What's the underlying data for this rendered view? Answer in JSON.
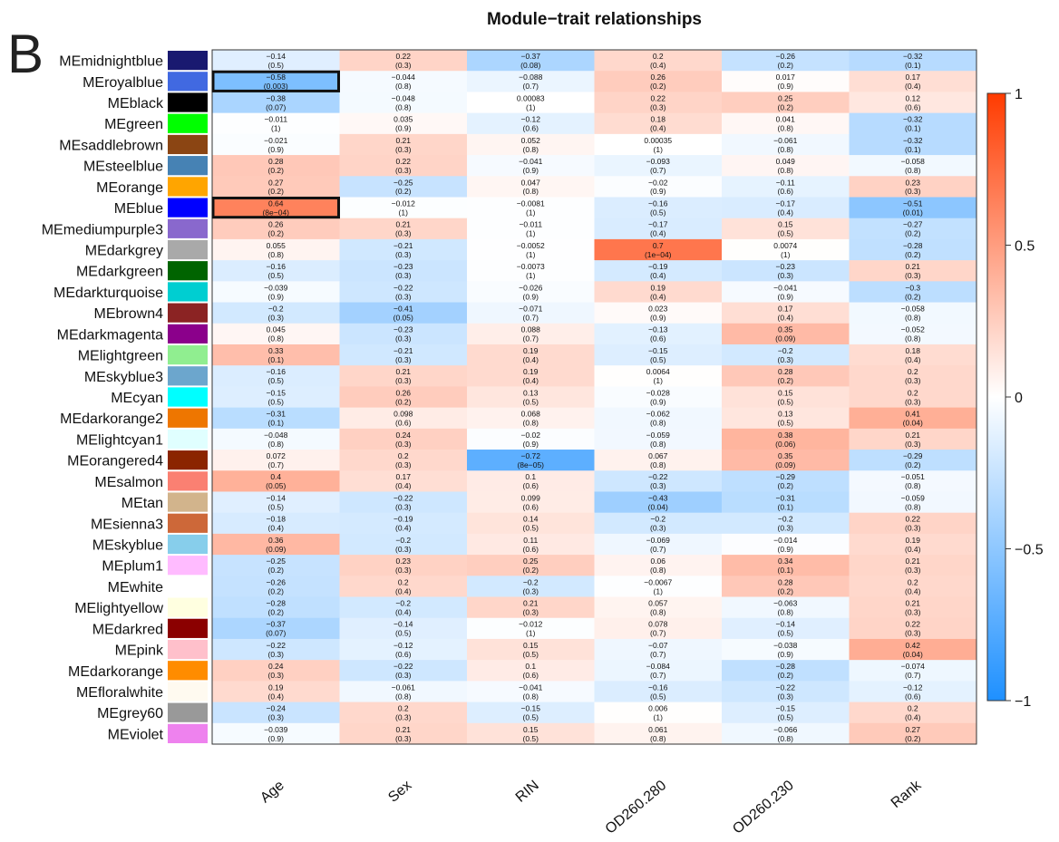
{
  "panel_label": "B",
  "chart_data": {
    "type": "heatmap",
    "title": "Module−trait relationships",
    "columns": [
      "Age",
      "Sex",
      "RIN",
      "OD260.280",
      "OD260.230",
      "Rank"
    ],
    "rows": [
      {
        "name": "MEmidnightblue",
        "color": "#191970",
        "values": [
          "−0.14",
          "0.22",
          "−0.37",
          "0.2",
          "−0.26",
          "−0.32"
        ],
        "pvalues": [
          "(0.5)",
          "(0.3)",
          "(0.08)",
          "(0.4)",
          "(0.2)",
          "(0.1)"
        ]
      },
      {
        "name": "MEroyalblue",
        "color": "#4169e1",
        "values": [
          "−0.58",
          "−0.044",
          "−0.088",
          "0.26",
          "0.017",
          "0.17"
        ],
        "pvalues": [
          "(0.003)",
          "(0.8)",
          "(0.7)",
          "(0.2)",
          "(0.9)",
          "(0.4)"
        ]
      },
      {
        "name": "MEblack",
        "color": "#000000",
        "values": [
          "−0.38",
          "−0.048",
          "0.00083",
          "0.22",
          "0.25",
          "0.12"
        ],
        "pvalues": [
          "(0.07)",
          "(0.8)",
          "(1)",
          "(0.3)",
          "(0.2)",
          "(0.6)"
        ]
      },
      {
        "name": "MEgreen",
        "color": "#00ff00",
        "values": [
          "−0.011",
          "0.035",
          "−0.12",
          "0.18",
          "0.041",
          "−0.32"
        ],
        "pvalues": [
          "(1)",
          "(0.9)",
          "(0.6)",
          "(0.4)",
          "(0.8)",
          "(0.1)"
        ]
      },
      {
        "name": "MEsaddlebrown",
        "color": "#8b4513",
        "values": [
          "−0.021",
          "0.21",
          "0.052",
          "0.00035",
          "−0.061",
          "−0.32"
        ],
        "pvalues": [
          "(0.9)",
          "(0.3)",
          "(0.8)",
          "(1)",
          "(0.8)",
          "(0.1)"
        ]
      },
      {
        "name": "MEsteelblue",
        "color": "#4682b4",
        "values": [
          "0.28",
          "0.22",
          "−0.041",
          "−0.093",
          "0.049",
          "−0.058"
        ],
        "pvalues": [
          "(0.2)",
          "(0.3)",
          "(0.9)",
          "(0.7)",
          "(0.8)",
          "(0.8)"
        ]
      },
      {
        "name": "MEorange",
        "color": "#ffa500",
        "values": [
          "0.27",
          "−0.25",
          "0.047",
          "−0.02",
          "−0.11",
          "0.23"
        ],
        "pvalues": [
          "(0.2)",
          "(0.2)",
          "(0.8)",
          "(0.9)",
          "(0.6)",
          "(0.3)"
        ]
      },
      {
        "name": "MEblue",
        "color": "#0000ff",
        "values": [
          "0.64",
          "−0.012",
          "−0.0081",
          "−0.16",
          "−0.17",
          "−0.51"
        ],
        "pvalues": [
          "(8e−04)",
          "(1)",
          "(1)",
          "(0.5)",
          "(0.4)",
          "(0.01)"
        ]
      },
      {
        "name": "MEmediumpurple3",
        "color": "#8968cd",
        "values": [
          "0.26",
          "0.21",
          "−0.011",
          "−0.17",
          "0.15",
          "−0.27"
        ],
        "pvalues": [
          "(0.2)",
          "(0.3)",
          "(1)",
          "(0.4)",
          "(0.5)",
          "(0.2)"
        ]
      },
      {
        "name": "MEdarkgrey",
        "color": "#a9a9a9",
        "values": [
          "0.055",
          "−0.21",
          "−0.0052",
          "0.7",
          "0.0074",
          "−0.28"
        ],
        "pvalues": [
          "(0.8)",
          "(0.3)",
          "(1)",
          "(1e−04)",
          "(1)",
          "(0.2)"
        ]
      },
      {
        "name": "MEdarkgreen",
        "color": "#006400",
        "values": [
          "−0.16",
          "−0.23",
          "−0.0073",
          "−0.19",
          "−0.23",
          "0.21"
        ],
        "pvalues": [
          "(0.5)",
          "(0.3)",
          "(1)",
          "(0.4)",
          "(0.3)",
          "(0.3)"
        ]
      },
      {
        "name": "MEdarkturquoise",
        "color": "#00ced1",
        "values": [
          "−0.039",
          "−0.22",
          "−0.026",
          "0.19",
          "−0.041",
          "−0.3"
        ],
        "pvalues": [
          "(0.9)",
          "(0.3)",
          "(0.9)",
          "(0.4)",
          "(0.9)",
          "(0.2)"
        ]
      },
      {
        "name": "MEbrown4",
        "color": "#8b2323",
        "values": [
          "−0.2",
          "−0.41",
          "−0.071",
          "0.023",
          "0.17",
          "−0.058"
        ],
        "pvalues": [
          "(0.3)",
          "(0.05)",
          "(0.7)",
          "(0.9)",
          "(0.4)",
          "(0.8)"
        ]
      },
      {
        "name": "MEdarkmagenta",
        "color": "#8b008b",
        "values": [
          "0.045",
          "−0.23",
          "0.088",
          "−0.13",
          "0.35",
          "−0.052"
        ],
        "pvalues": [
          "(0.8)",
          "(0.3)",
          "(0.7)",
          "(0.6)",
          "(0.09)",
          "(0.8)"
        ]
      },
      {
        "name": "MElightgreen",
        "color": "#90ee90",
        "values": [
          "0.33",
          "−0.21",
          "0.19",
          "−0.15",
          "−0.2",
          "0.18"
        ],
        "pvalues": [
          "(0.1)",
          "(0.3)",
          "(0.4)",
          "(0.5)",
          "(0.3)",
          "(0.4)"
        ]
      },
      {
        "name": "MEskyblue3",
        "color": "#6ca6cd",
        "values": [
          "−0.16",
          "0.21",
          "0.19",
          "0.0064",
          "0.28",
          "0.2"
        ],
        "pvalues": [
          "(0.5)",
          "(0.3)",
          "(0.4)",
          "(1)",
          "(0.2)",
          "(0.3)"
        ]
      },
      {
        "name": "MEcyan",
        "color": "#00ffff",
        "values": [
          "−0.15",
          "0.26",
          "0.13",
          "−0.028",
          "0.15",
          "0.2"
        ],
        "pvalues": [
          "(0.5)",
          "(0.2)",
          "(0.5)",
          "(0.9)",
          "(0.5)",
          "(0.3)"
        ]
      },
      {
        "name": "MEdarkorange2",
        "color": "#ee7600",
        "values": [
          "−0.31",
          "0.098",
          "0.068",
          "−0.062",
          "0.13",
          "0.41"
        ],
        "pvalues": [
          "(0.1)",
          "(0.6)",
          "(0.8)",
          "(0.8)",
          "(0.5)",
          "(0.04)"
        ]
      },
      {
        "name": "MElightcyan1",
        "color": "#e0ffff",
        "values": [
          "−0.048",
          "0.24",
          "−0.02",
          "−0.059",
          "0.38",
          "0.21"
        ],
        "pvalues": [
          "(0.8)",
          "(0.3)",
          "(0.9)",
          "(0.8)",
          "(0.06)",
          "(0.3)"
        ]
      },
      {
        "name": "MEorangered4",
        "color": "#8b2500",
        "values": [
          "0.072",
          "0.2",
          "−0.72",
          "0.067",
          "0.35",
          "−0.29"
        ],
        "pvalues": [
          "(0.7)",
          "(0.3)",
          "(8e−05)",
          "(0.8)",
          "(0.09)",
          "(0.2)"
        ]
      },
      {
        "name": "MEsalmon",
        "color": "#fa8072",
        "values": [
          "0.4",
          "0.17",
          "0.1",
          "−0.22",
          "−0.29",
          "−0.051"
        ],
        "pvalues": [
          "(0.05)",
          "(0.4)",
          "(0.6)",
          "(0.3)",
          "(0.2)",
          "(0.8)"
        ]
      },
      {
        "name": "MEtan",
        "color": "#d2b48c",
        "values": [
          "−0.14",
          "−0.22",
          "0.099",
          "−0.43",
          "−0.31",
          "−0.059"
        ],
        "pvalues": [
          "(0.5)",
          "(0.3)",
          "(0.6)",
          "(0.04)",
          "(0.1)",
          "(0.8)"
        ]
      },
      {
        "name": "MEsienna3",
        "color": "#cd6839",
        "values": [
          "−0.18",
          "−0.19",
          "0.14",
          "−0.2",
          "−0.2",
          "0.22"
        ],
        "pvalues": [
          "(0.4)",
          "(0.4)",
          "(0.5)",
          "(0.3)",
          "(0.3)",
          "(0.3)"
        ]
      },
      {
        "name": "MEskyblue",
        "color": "#87ceeb",
        "values": [
          "0.36",
          "−0.2",
          "0.11",
          "−0.069",
          "−0.014",
          "0.19"
        ],
        "pvalues": [
          "(0.09)",
          "(0.3)",
          "(0.6)",
          "(0.7)",
          "(0.9)",
          "(0.4)"
        ]
      },
      {
        "name": "MEplum1",
        "color": "#ffbbff",
        "values": [
          "−0.25",
          "0.23",
          "0.25",
          "0.06",
          "0.34",
          "0.21"
        ],
        "pvalues": [
          "(0.2)",
          "(0.3)",
          "(0.2)",
          "(0.8)",
          "(0.1)",
          "(0.3)"
        ]
      },
      {
        "name": "MEwhite",
        "color": "#ffffff",
        "values": [
          "−0.26",
          "0.2",
          "−0.2",
          "−0.0067",
          "0.28",
          "0.2"
        ],
        "pvalues": [
          "(0.2)",
          "(0.4)",
          "(0.3)",
          "(1)",
          "(0.2)",
          "(0.4)"
        ]
      },
      {
        "name": "MElightyellow",
        "color": "#ffffe0",
        "values": [
          "−0.28",
          "−0.2",
          "0.21",
          "0.057",
          "−0.063",
          "0.21"
        ],
        "pvalues": [
          "(0.2)",
          "(0.4)",
          "(0.3)",
          "(0.8)",
          "(0.8)",
          "(0.3)"
        ]
      },
      {
        "name": "MEdarkred",
        "color": "#8b0000",
        "values": [
          "−0.37",
          "−0.14",
          "−0.012",
          "0.078",
          "−0.14",
          "0.22"
        ],
        "pvalues": [
          "(0.07)",
          "(0.5)",
          "(1)",
          "(0.7)",
          "(0.5)",
          "(0.3)"
        ]
      },
      {
        "name": "MEpink",
        "color": "#ffc0cb",
        "values": [
          "−0.22",
          "−0.12",
          "0.15",
          "−0.07",
          "−0.038",
          "0.42"
        ],
        "pvalues": [
          "(0.3)",
          "(0.6)",
          "(0.5)",
          "(0.7)",
          "(0.9)",
          "(0.04)"
        ]
      },
      {
        "name": "MEdarkorange",
        "color": "#ff8c00",
        "values": [
          "0.24",
          "−0.22",
          "0.1",
          "−0.084",
          "−0.28",
          "−0.074"
        ],
        "pvalues": [
          "(0.3)",
          "(0.3)",
          "(0.6)",
          "(0.7)",
          "(0.2)",
          "(0.7)"
        ]
      },
      {
        "name": "MEfloralwhite",
        "color": "#fffaf0",
        "values": [
          "0.19",
          "−0.061",
          "−0.041",
          "−0.16",
          "−0.22",
          "−0.12"
        ],
        "pvalues": [
          "(0.4)",
          "(0.8)",
          "(0.8)",
          "(0.5)",
          "(0.3)",
          "(0.6)"
        ]
      },
      {
        "name": "MEgrey60",
        "color": "#999999",
        "values": [
          "−0.24",
          "0.2",
          "−0.15",
          "0.006",
          "−0.15",
          "0.2"
        ],
        "pvalues": [
          "(0.3)",
          "(0.3)",
          "(0.5)",
          "(1)",
          "(0.5)",
          "(0.4)"
        ]
      },
      {
        "name": "MEviolet",
        "color": "#ee82ee",
        "values": [
          "−0.039",
          "0.21",
          "0.15",
          "0.061",
          "−0.066",
          "0.27"
        ],
        "pvalues": [
          "(0.9)",
          "(0.3)",
          "(0.5)",
          "(0.8)",
          "(0.8)",
          "(0.2)"
        ]
      }
    ],
    "highlighted_cells": [
      {
        "row": "MEroyalblue",
        "column": "Age"
      },
      {
        "row": "MEblue",
        "column": "Age"
      }
    ],
    "color_scale": {
      "min": -1,
      "max": 1,
      "low_color": "#1e90ff",
      "mid_color": "#ffffff",
      "high_color": "#ff3b00",
      "ticks": [
        "1",
        "0.5",
        "0",
        "−0.5",
        "−1"
      ],
      "tick_values": [
        1,
        0.5,
        0,
        -0.5,
        -1
      ]
    }
  }
}
